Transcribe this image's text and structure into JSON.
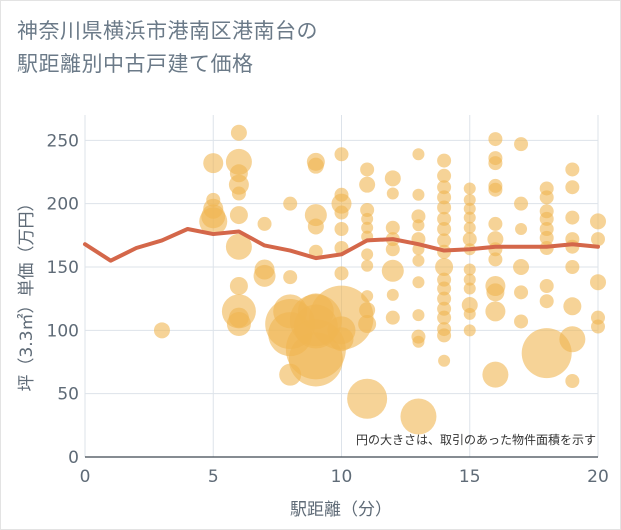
{
  "title_lines": [
    "神奈川県横浜市港南区港南台の",
    "駅距離別中古戸建て価格"
  ],
  "note": "円の大きさは、取引のあった物件面積を示す",
  "colors": {
    "bubble": "#f0b552",
    "line": "#d4674a",
    "grid": "#dde3ea",
    "text": "#5f6b77"
  },
  "chart_data": {
    "type": "scatter",
    "title": "神奈川県横浜市港南区港南台の駅距離別中古戸建て価格",
    "xlabel": "駅距離（分）",
    "ylabel": "坪（3.3㎡）単価（万円）",
    "xlim": [
      0,
      20
    ],
    "ylim": [
      0,
      270
    ],
    "xticks": [
      0,
      5,
      10,
      15,
      20
    ],
    "yticks": [
      0,
      50,
      100,
      150,
      200,
      250
    ],
    "grid": true,
    "line_series": {
      "x": [
        0,
        1,
        2,
        3,
        4,
        5,
        6,
        7,
        8,
        9,
        10,
        11,
        12,
        13,
        14,
        15,
        16,
        17,
        18,
        19,
        20
      ],
      "y": [
        168,
        155,
        165,
        171,
        180,
        176,
        178,
        167,
        163,
        157,
        160,
        171,
        172,
        168,
        163,
        164,
        166,
        166,
        166,
        168,
        166
      ]
    },
    "bubbles": [
      {
        "x": 3,
        "y": 100,
        "r": 8
      },
      {
        "x": 5,
        "y": 232,
        "r": 10
      },
      {
        "x": 5,
        "y": 203,
        "r": 7
      },
      {
        "x": 5,
        "y": 196,
        "r": 10
      },
      {
        "x": 5,
        "y": 190,
        "r": 12
      },
      {
        "x": 5,
        "y": 186,
        "r": 14
      },
      {
        "x": 6,
        "y": 256,
        "r": 8
      },
      {
        "x": 6,
        "y": 233,
        "r": 13
      },
      {
        "x": 6,
        "y": 224,
        "r": 9
      },
      {
        "x": 6,
        "y": 215,
        "r": 10
      },
      {
        "x": 6,
        "y": 208,
        "r": 7
      },
      {
        "x": 6,
        "y": 191,
        "r": 9
      },
      {
        "x": 6,
        "y": 166,
        "r": 13
      },
      {
        "x": 6,
        "y": 135,
        "r": 9
      },
      {
        "x": 6,
        "y": 115,
        "r": 17
      },
      {
        "x": 6,
        "y": 110,
        "r": 10
      },
      {
        "x": 6,
        "y": 105,
        "r": 12
      },
      {
        "x": 7,
        "y": 184,
        "r": 7
      },
      {
        "x": 7,
        "y": 148,
        "r": 10
      },
      {
        "x": 7,
        "y": 143,
        "r": 11
      },
      {
        "x": 8,
        "y": 200,
        "r": 7
      },
      {
        "x": 8,
        "y": 142,
        "r": 7
      },
      {
        "x": 8,
        "y": 115,
        "r": 17
      },
      {
        "x": 8,
        "y": 105,
        "r": 25
      },
      {
        "x": 8,
        "y": 97,
        "r": 22
      },
      {
        "x": 8,
        "y": 65,
        "r": 11
      },
      {
        "x": 9,
        "y": 233,
        "r": 9
      },
      {
        "x": 9,
        "y": 230,
        "r": 8
      },
      {
        "x": 9,
        "y": 191,
        "r": 11
      },
      {
        "x": 9,
        "y": 182,
        "r": 8
      },
      {
        "x": 9,
        "y": 162,
        "r": 7
      },
      {
        "x": 9,
        "y": 115,
        "r": 18
      },
      {
        "x": 9,
        "y": 108,
        "r": 26
      },
      {
        "x": 9,
        "y": 103,
        "r": 22
      },
      {
        "x": 9,
        "y": 85,
        "r": 30
      },
      {
        "x": 9,
        "y": 77,
        "r": 27
      },
      {
        "x": 10,
        "y": 239,
        "r": 7
      },
      {
        "x": 10,
        "y": 207,
        "r": 7
      },
      {
        "x": 10,
        "y": 200,
        "r": 10
      },
      {
        "x": 10,
        "y": 193,
        "r": 7
      },
      {
        "x": 10,
        "y": 180,
        "r": 7
      },
      {
        "x": 10,
        "y": 165,
        "r": 7
      },
      {
        "x": 10,
        "y": 145,
        "r": 7
      },
      {
        "x": 10,
        "y": 110,
        "r": 32
      },
      {
        "x": 10,
        "y": 100,
        "r": 14
      },
      {
        "x": 10,
        "y": 93,
        "r": 12
      },
      {
        "x": 11,
        "y": 227,
        "r": 7
      },
      {
        "x": 11,
        "y": 215,
        "r": 8
      },
      {
        "x": 11,
        "y": 195,
        "r": 7
      },
      {
        "x": 11,
        "y": 188,
        "r": 6
      },
      {
        "x": 11,
        "y": 181,
        "r": 6
      },
      {
        "x": 11,
        "y": 174,
        "r": 6
      },
      {
        "x": 11,
        "y": 160,
        "r": 6
      },
      {
        "x": 11,
        "y": 151,
        "r": 6
      },
      {
        "x": 11,
        "y": 127,
        "r": 6
      },
      {
        "x": 11,
        "y": 116,
        "r": 8
      },
      {
        "x": 11,
        "y": 105,
        "r": 9
      },
      {
        "x": 11,
        "y": 46,
        "r": 20
      },
      {
        "x": 12,
        "y": 220,
        "r": 8
      },
      {
        "x": 12,
        "y": 208,
        "r": 6
      },
      {
        "x": 12,
        "y": 181,
        "r": 7
      },
      {
        "x": 12,
        "y": 172,
        "r": 7
      },
      {
        "x": 12,
        "y": 164,
        "r": 7
      },
      {
        "x": 12,
        "y": 147,
        "r": 11
      },
      {
        "x": 12,
        "y": 128,
        "r": 6
      },
      {
        "x": 12,
        "y": 110,
        "r": 7
      },
      {
        "x": 13,
        "y": 239,
        "r": 6
      },
      {
        "x": 13,
        "y": 207,
        "r": 6
      },
      {
        "x": 13,
        "y": 190,
        "r": 7
      },
      {
        "x": 13,
        "y": 183,
        "r": 6
      },
      {
        "x": 13,
        "y": 172,
        "r": 7
      },
      {
        "x": 13,
        "y": 164,
        "r": 6
      },
      {
        "x": 13,
        "y": 155,
        "r": 6
      },
      {
        "x": 13,
        "y": 138,
        "r": 6
      },
      {
        "x": 13,
        "y": 112,
        "r": 6
      },
      {
        "x": 13,
        "y": 95,
        "r": 7
      },
      {
        "x": 13,
        "y": 91,
        "r": 6
      },
      {
        "x": 13,
        "y": 32,
        "r": 18
      },
      {
        "x": 14,
        "y": 234,
        "r": 7
      },
      {
        "x": 14,
        "y": 222,
        "r": 7
      },
      {
        "x": 14,
        "y": 213,
        "r": 7
      },
      {
        "x": 14,
        "y": 205,
        "r": 7
      },
      {
        "x": 14,
        "y": 197,
        "r": 7
      },
      {
        "x": 14,
        "y": 188,
        "r": 7
      },
      {
        "x": 14,
        "y": 180,
        "r": 7
      },
      {
        "x": 14,
        "y": 171,
        "r": 7
      },
      {
        "x": 14,
        "y": 162,
        "r": 7
      },
      {
        "x": 14,
        "y": 150,
        "r": 9
      },
      {
        "x": 14,
        "y": 140,
        "r": 7
      },
      {
        "x": 14,
        "y": 133,
        "r": 7
      },
      {
        "x": 14,
        "y": 125,
        "r": 7
      },
      {
        "x": 14,
        "y": 117,
        "r": 7
      },
      {
        "x": 14,
        "y": 110,
        "r": 7
      },
      {
        "x": 14,
        "y": 101,
        "r": 7
      },
      {
        "x": 14,
        "y": 96,
        "r": 7
      },
      {
        "x": 14,
        "y": 76,
        "r": 6
      },
      {
        "x": 15,
        "y": 212,
        "r": 6
      },
      {
        "x": 15,
        "y": 203,
        "r": 6
      },
      {
        "x": 15,
        "y": 196,
        "r": 6
      },
      {
        "x": 15,
        "y": 189,
        "r": 6
      },
      {
        "x": 15,
        "y": 181,
        "r": 6
      },
      {
        "x": 15,
        "y": 172,
        "r": 7
      },
      {
        "x": 15,
        "y": 164,
        "r": 6
      },
      {
        "x": 15,
        "y": 148,
        "r": 6
      },
      {
        "x": 15,
        "y": 140,
        "r": 6
      },
      {
        "x": 15,
        "y": 133,
        "r": 6
      },
      {
        "x": 15,
        "y": 120,
        "r": 8
      },
      {
        "x": 15,
        "y": 113,
        "r": 6
      },
      {
        "x": 15,
        "y": 100,
        "r": 6
      },
      {
        "x": 16,
        "y": 251,
        "r": 7
      },
      {
        "x": 16,
        "y": 236,
        "r": 7
      },
      {
        "x": 16,
        "y": 232,
        "r": 7
      },
      {
        "x": 16,
        "y": 214,
        "r": 7
      },
      {
        "x": 16,
        "y": 211,
        "r": 7
      },
      {
        "x": 16,
        "y": 184,
        "r": 7
      },
      {
        "x": 16,
        "y": 172,
        "r": 8
      },
      {
        "x": 16,
        "y": 164,
        "r": 7
      },
      {
        "x": 16,
        "y": 156,
        "r": 7
      },
      {
        "x": 16,
        "y": 135,
        "r": 10
      },
      {
        "x": 16,
        "y": 130,
        "r": 9
      },
      {
        "x": 16,
        "y": 115,
        "r": 10
      },
      {
        "x": 16,
        "y": 65,
        "r": 13
      },
      {
        "x": 17,
        "y": 247,
        "r": 7
      },
      {
        "x": 17,
        "y": 200,
        "r": 7
      },
      {
        "x": 17,
        "y": 180,
        "r": 6
      },
      {
        "x": 17,
        "y": 150,
        "r": 8
      },
      {
        "x": 17,
        "y": 130,
        "r": 7
      },
      {
        "x": 17,
        "y": 107,
        "r": 7
      },
      {
        "x": 18,
        "y": 212,
        "r": 7
      },
      {
        "x": 18,
        "y": 205,
        "r": 7
      },
      {
        "x": 18,
        "y": 194,
        "r": 7
      },
      {
        "x": 18,
        "y": 188,
        "r": 7
      },
      {
        "x": 18,
        "y": 180,
        "r": 7
      },
      {
        "x": 18,
        "y": 173,
        "r": 7
      },
      {
        "x": 18,
        "y": 165,
        "r": 7
      },
      {
        "x": 18,
        "y": 135,
        "r": 7
      },
      {
        "x": 18,
        "y": 123,
        "r": 7
      },
      {
        "x": 18,
        "y": 82,
        "r": 25
      },
      {
        "x": 19,
        "y": 227,
        "r": 7
      },
      {
        "x": 19,
        "y": 213,
        "r": 7
      },
      {
        "x": 19,
        "y": 189,
        "r": 7
      },
      {
        "x": 19,
        "y": 172,
        "r": 7
      },
      {
        "x": 19,
        "y": 166,
        "r": 7
      },
      {
        "x": 19,
        "y": 150,
        "r": 7
      },
      {
        "x": 19,
        "y": 119,
        "r": 9
      },
      {
        "x": 19,
        "y": 93,
        "r": 13
      },
      {
        "x": 19,
        "y": 60,
        "r": 7
      },
      {
        "x": 20,
        "y": 186,
        "r": 8
      },
      {
        "x": 20,
        "y": 172,
        "r": 7
      },
      {
        "x": 20,
        "y": 138,
        "r": 8
      },
      {
        "x": 20,
        "y": 110,
        "r": 7
      },
      {
        "x": 20,
        "y": 103,
        "r": 7
      }
    ]
  }
}
